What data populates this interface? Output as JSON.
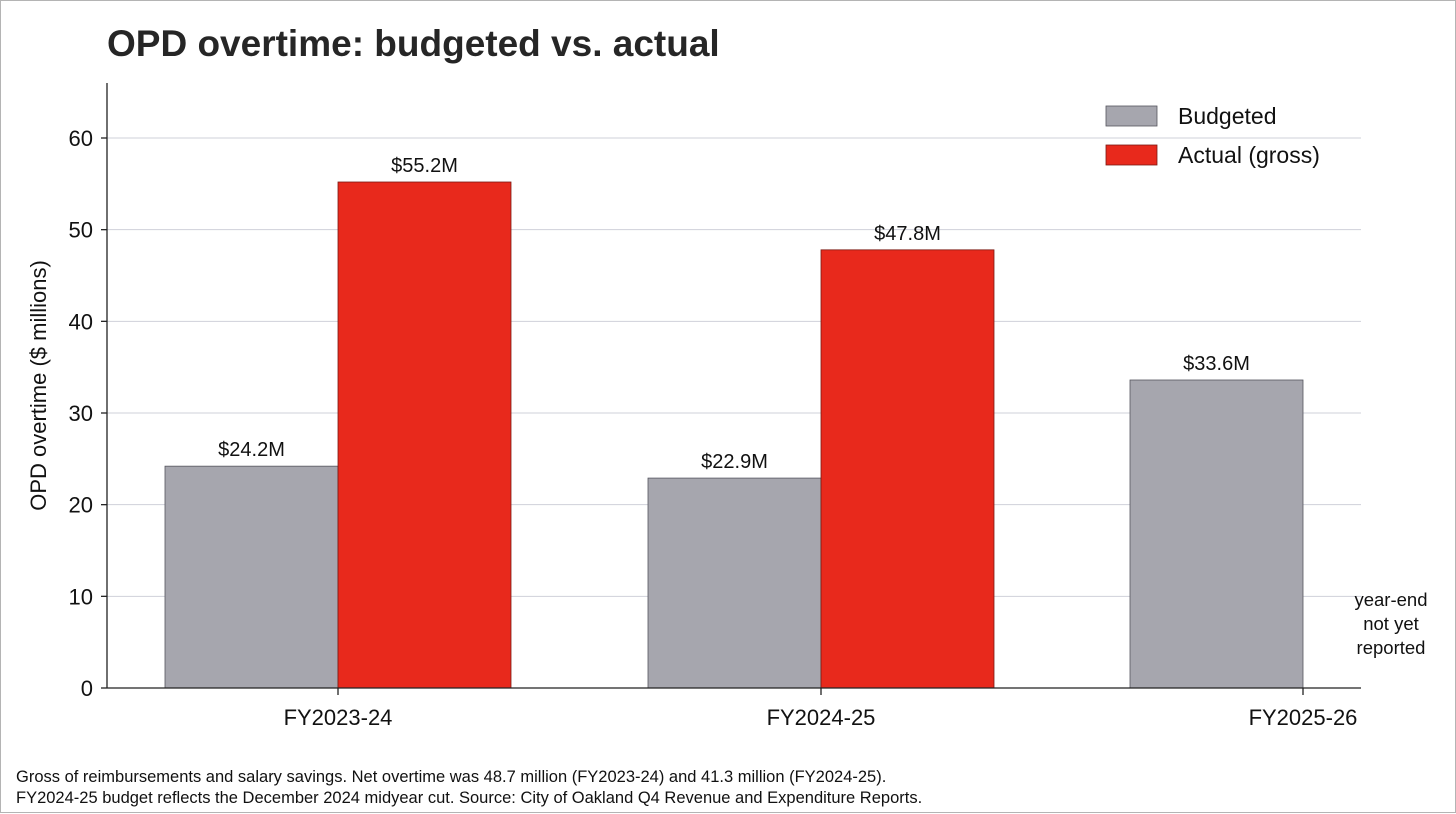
{
  "title": "OPD overtime: budgeted vs. actual",
  "footnote": {
    "line1": "Gross of reimbursements and salary savings. Net overtime was 48.7 million (FY2023-24) and 41.3 million (FY2024-25).",
    "line2": "FY2024-25 budget reflects the December 2024 midyear cut. Source: City of Oakland Q4 Revenue and Expenditure Reports."
  },
  "chart_data": {
    "type": "bar",
    "categories": [
      "FY2023-24",
      "FY2024-25",
      "FY2025-26"
    ],
    "series": [
      {
        "name": "Budgeted",
        "values": [
          24.2,
          22.9,
          33.6
        ],
        "labels": [
          "$24.2M",
          "$22.9M",
          "$33.6M"
        ],
        "color": "#a6a6ae"
      },
      {
        "name": "Actual (gross)",
        "values": [
          55.2,
          47.8,
          null
        ],
        "labels": [
          "$55.2M",
          "$47.8M",
          ""
        ],
        "color": "#e8291c"
      }
    ],
    "ylabel": "OPD overtime ($ millions)",
    "xlabel": "",
    "ylim": [
      0,
      66
    ],
    "yticks": [
      0,
      10,
      20,
      30,
      40,
      50,
      60
    ],
    "grid": true,
    "legend_position": "top-right",
    "annotation": "year-end\nnot yet\nreported"
  }
}
